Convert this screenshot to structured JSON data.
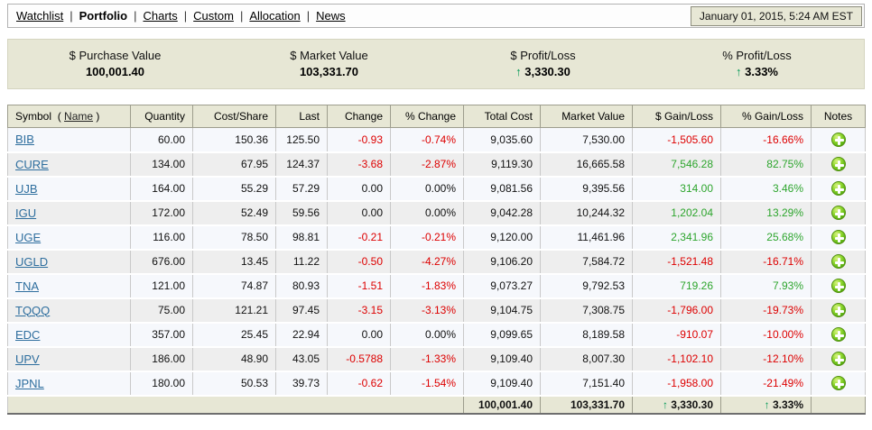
{
  "nav": {
    "separator": "|",
    "items": [
      {
        "label": "Watchlist",
        "active": false
      },
      {
        "label": "Portfolio",
        "active": true
      },
      {
        "label": "Charts",
        "active": false
      },
      {
        "label": "Custom",
        "active": false
      },
      {
        "label": "Allocation",
        "active": false
      },
      {
        "label": "News",
        "active": false
      }
    ],
    "datetime": "January 01, 2015, 5:24 AM EST"
  },
  "summary": {
    "cells": [
      {
        "label": "$ Purchase Value",
        "arrow": "",
        "value": "100,001.40"
      },
      {
        "label": "$ Market Value",
        "arrow": "",
        "value": "103,331.70"
      },
      {
        "label": "$ Profit/Loss",
        "arrow": "↑",
        "value": "3,330.30"
      },
      {
        "label": "% Profit/Loss",
        "arrow": "↑",
        "value": "3.33%"
      }
    ]
  },
  "table": {
    "headers": {
      "symbol": "Symbol",
      "paren_open": "(",
      "name": "Name",
      "paren_close": ")",
      "quantity": "Quantity",
      "cost_share": "Cost/Share",
      "last": "Last",
      "change": "Change",
      "pct_change": "% Change",
      "total_cost": "Total Cost",
      "market_value": "Market Value",
      "gain": "$ Gain/Loss",
      "pct_gain": "% Gain/Loss",
      "notes": "Notes"
    },
    "rows": [
      {
        "symbol": "BIB",
        "quantity": "60.00",
        "cost_share": "150.36",
        "last": "125.50",
        "change": "-0.93",
        "pct_change": "-0.74%",
        "total_cost": "9,035.60",
        "market_value": "7,530.00",
        "gain": "-1,505.60",
        "pct_gain": "-16.66%"
      },
      {
        "symbol": "CURE",
        "quantity": "134.00",
        "cost_share": "67.95",
        "last": "124.37",
        "change": "-3.68",
        "pct_change": "-2.87%",
        "total_cost": "9,119.30",
        "market_value": "16,665.58",
        "gain": "7,546.28",
        "pct_gain": "82.75%"
      },
      {
        "symbol": "UJB",
        "quantity": "164.00",
        "cost_share": "55.29",
        "last": "57.29",
        "change": "0.00",
        "pct_change": "0.00%",
        "total_cost": "9,081.56",
        "market_value": "9,395.56",
        "gain": "314.00",
        "pct_gain": "3.46%"
      },
      {
        "symbol": "IGU",
        "quantity": "172.00",
        "cost_share": "52.49",
        "last": "59.56",
        "change": "0.00",
        "pct_change": "0.00%",
        "total_cost": "9,042.28",
        "market_value": "10,244.32",
        "gain": "1,202.04",
        "pct_gain": "13.29%"
      },
      {
        "symbol": "UGE",
        "quantity": "116.00",
        "cost_share": "78.50",
        "last": "98.81",
        "change": "-0.21",
        "pct_change": "-0.21%",
        "total_cost": "9,120.00",
        "market_value": "11,461.96",
        "gain": "2,341.96",
        "pct_gain": "25.68%"
      },
      {
        "symbol": "UGLD",
        "quantity": "676.00",
        "cost_share": "13.45",
        "last": "11.22",
        "change": "-0.50",
        "pct_change": "-4.27%",
        "total_cost": "9,106.20",
        "market_value": "7,584.72",
        "gain": "-1,521.48",
        "pct_gain": "-16.71%"
      },
      {
        "symbol": "TNA",
        "quantity": "121.00",
        "cost_share": "74.87",
        "last": "80.93",
        "change": "-1.51",
        "pct_change": "-1.83%",
        "total_cost": "9,073.27",
        "market_value": "9,792.53",
        "gain": "719.26",
        "pct_gain": "7.93%"
      },
      {
        "symbol": "TQQQ",
        "quantity": "75.00",
        "cost_share": "121.21",
        "last": "97.45",
        "change": "-3.15",
        "pct_change": "-3.13%",
        "total_cost": "9,104.75",
        "market_value": "7,308.75",
        "gain": "-1,796.00",
        "pct_gain": "-19.73%"
      },
      {
        "symbol": "EDC",
        "quantity": "357.00",
        "cost_share": "25.45",
        "last": "22.94",
        "change": "0.00",
        "pct_change": "0.00%",
        "total_cost": "9,099.65",
        "market_value": "8,189.58",
        "gain": "-910.07",
        "pct_gain": "-10.00%"
      },
      {
        "symbol": "UPV",
        "quantity": "186.00",
        "cost_share": "48.90",
        "last": "43.05",
        "change": "-0.5788",
        "pct_change": "-1.33%",
        "total_cost": "9,109.40",
        "market_value": "8,007.30",
        "gain": "-1,102.10",
        "pct_gain": "-12.10%"
      },
      {
        "symbol": "JPNL",
        "quantity": "180.00",
        "cost_share": "50.53",
        "last": "39.73",
        "change": "-0.62",
        "pct_change": "-1.54%",
        "total_cost": "9,109.40",
        "market_value": "7,151.40",
        "gain": "-1,958.00",
        "pct_gain": "-21.49%"
      }
    ],
    "footer": {
      "total_cost": "100,001.40",
      "market_value": "103,331.70",
      "gain_arrow": "↑",
      "gain": "3,330.30",
      "pct_gain_arrow": "↑",
      "pct_gain": "3.33%"
    }
  },
  "colors": {
    "panel_beige": "#e7e7d5",
    "negative_red": "#dd0000",
    "positive_green": "#2da52d",
    "arrow_green": "#009955",
    "symbol_link_blue": "#2e6e9e"
  },
  "icons": {
    "notes_button": "plus-icon",
    "profit_indicator": "up-arrow-icon"
  }
}
